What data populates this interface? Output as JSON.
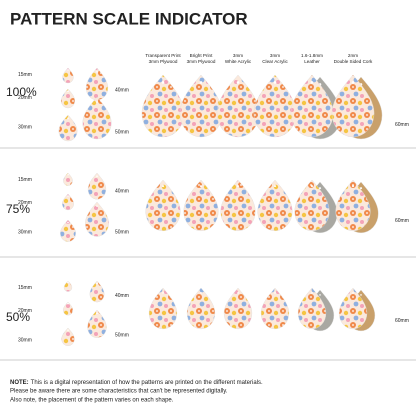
{
  "title": "PATTERN SCALE INDICATOR",
  "materials": [
    [
      "Transparent Print",
      "3mm Plywood"
    ],
    [
      "Bright Print",
      "3mm Plywood"
    ],
    [
      "3mm",
      "White Acrylic"
    ],
    [
      "3mm",
      "Clear Acrylic"
    ],
    [
      "1.6-1.8mm",
      "Leather"
    ],
    [
      "2mm",
      "Double Sided Cork"
    ]
  ],
  "sections": [
    {
      "scale": "100%",
      "small_sizes": [
        "15mm",
        "20mm",
        "30mm"
      ],
      "large_sizes": [
        "40mm",
        "50mm"
      ],
      "end_size": "60mm"
    },
    {
      "scale": "75%",
      "small_sizes": [
        "15mm",
        "20mm",
        "30mm"
      ],
      "large_sizes": [
        "40mm",
        "50mm"
      ],
      "end_size": "60mm"
    },
    {
      "scale": "50%",
      "small_sizes": [
        "15mm",
        "20mm",
        "30mm"
      ],
      "large_sizes": [
        "40mm",
        "50mm"
      ],
      "end_size": "60mm"
    }
  ],
  "note": {
    "label": "NOTE:",
    "lines": [
      "This is a digital representation of how the patterns are printed on the different materials.",
      "Please be aware there are some characteristics that can't be represented digitally.",
      "Also note, the placement of the pattern varies on each shape."
    ]
  }
}
